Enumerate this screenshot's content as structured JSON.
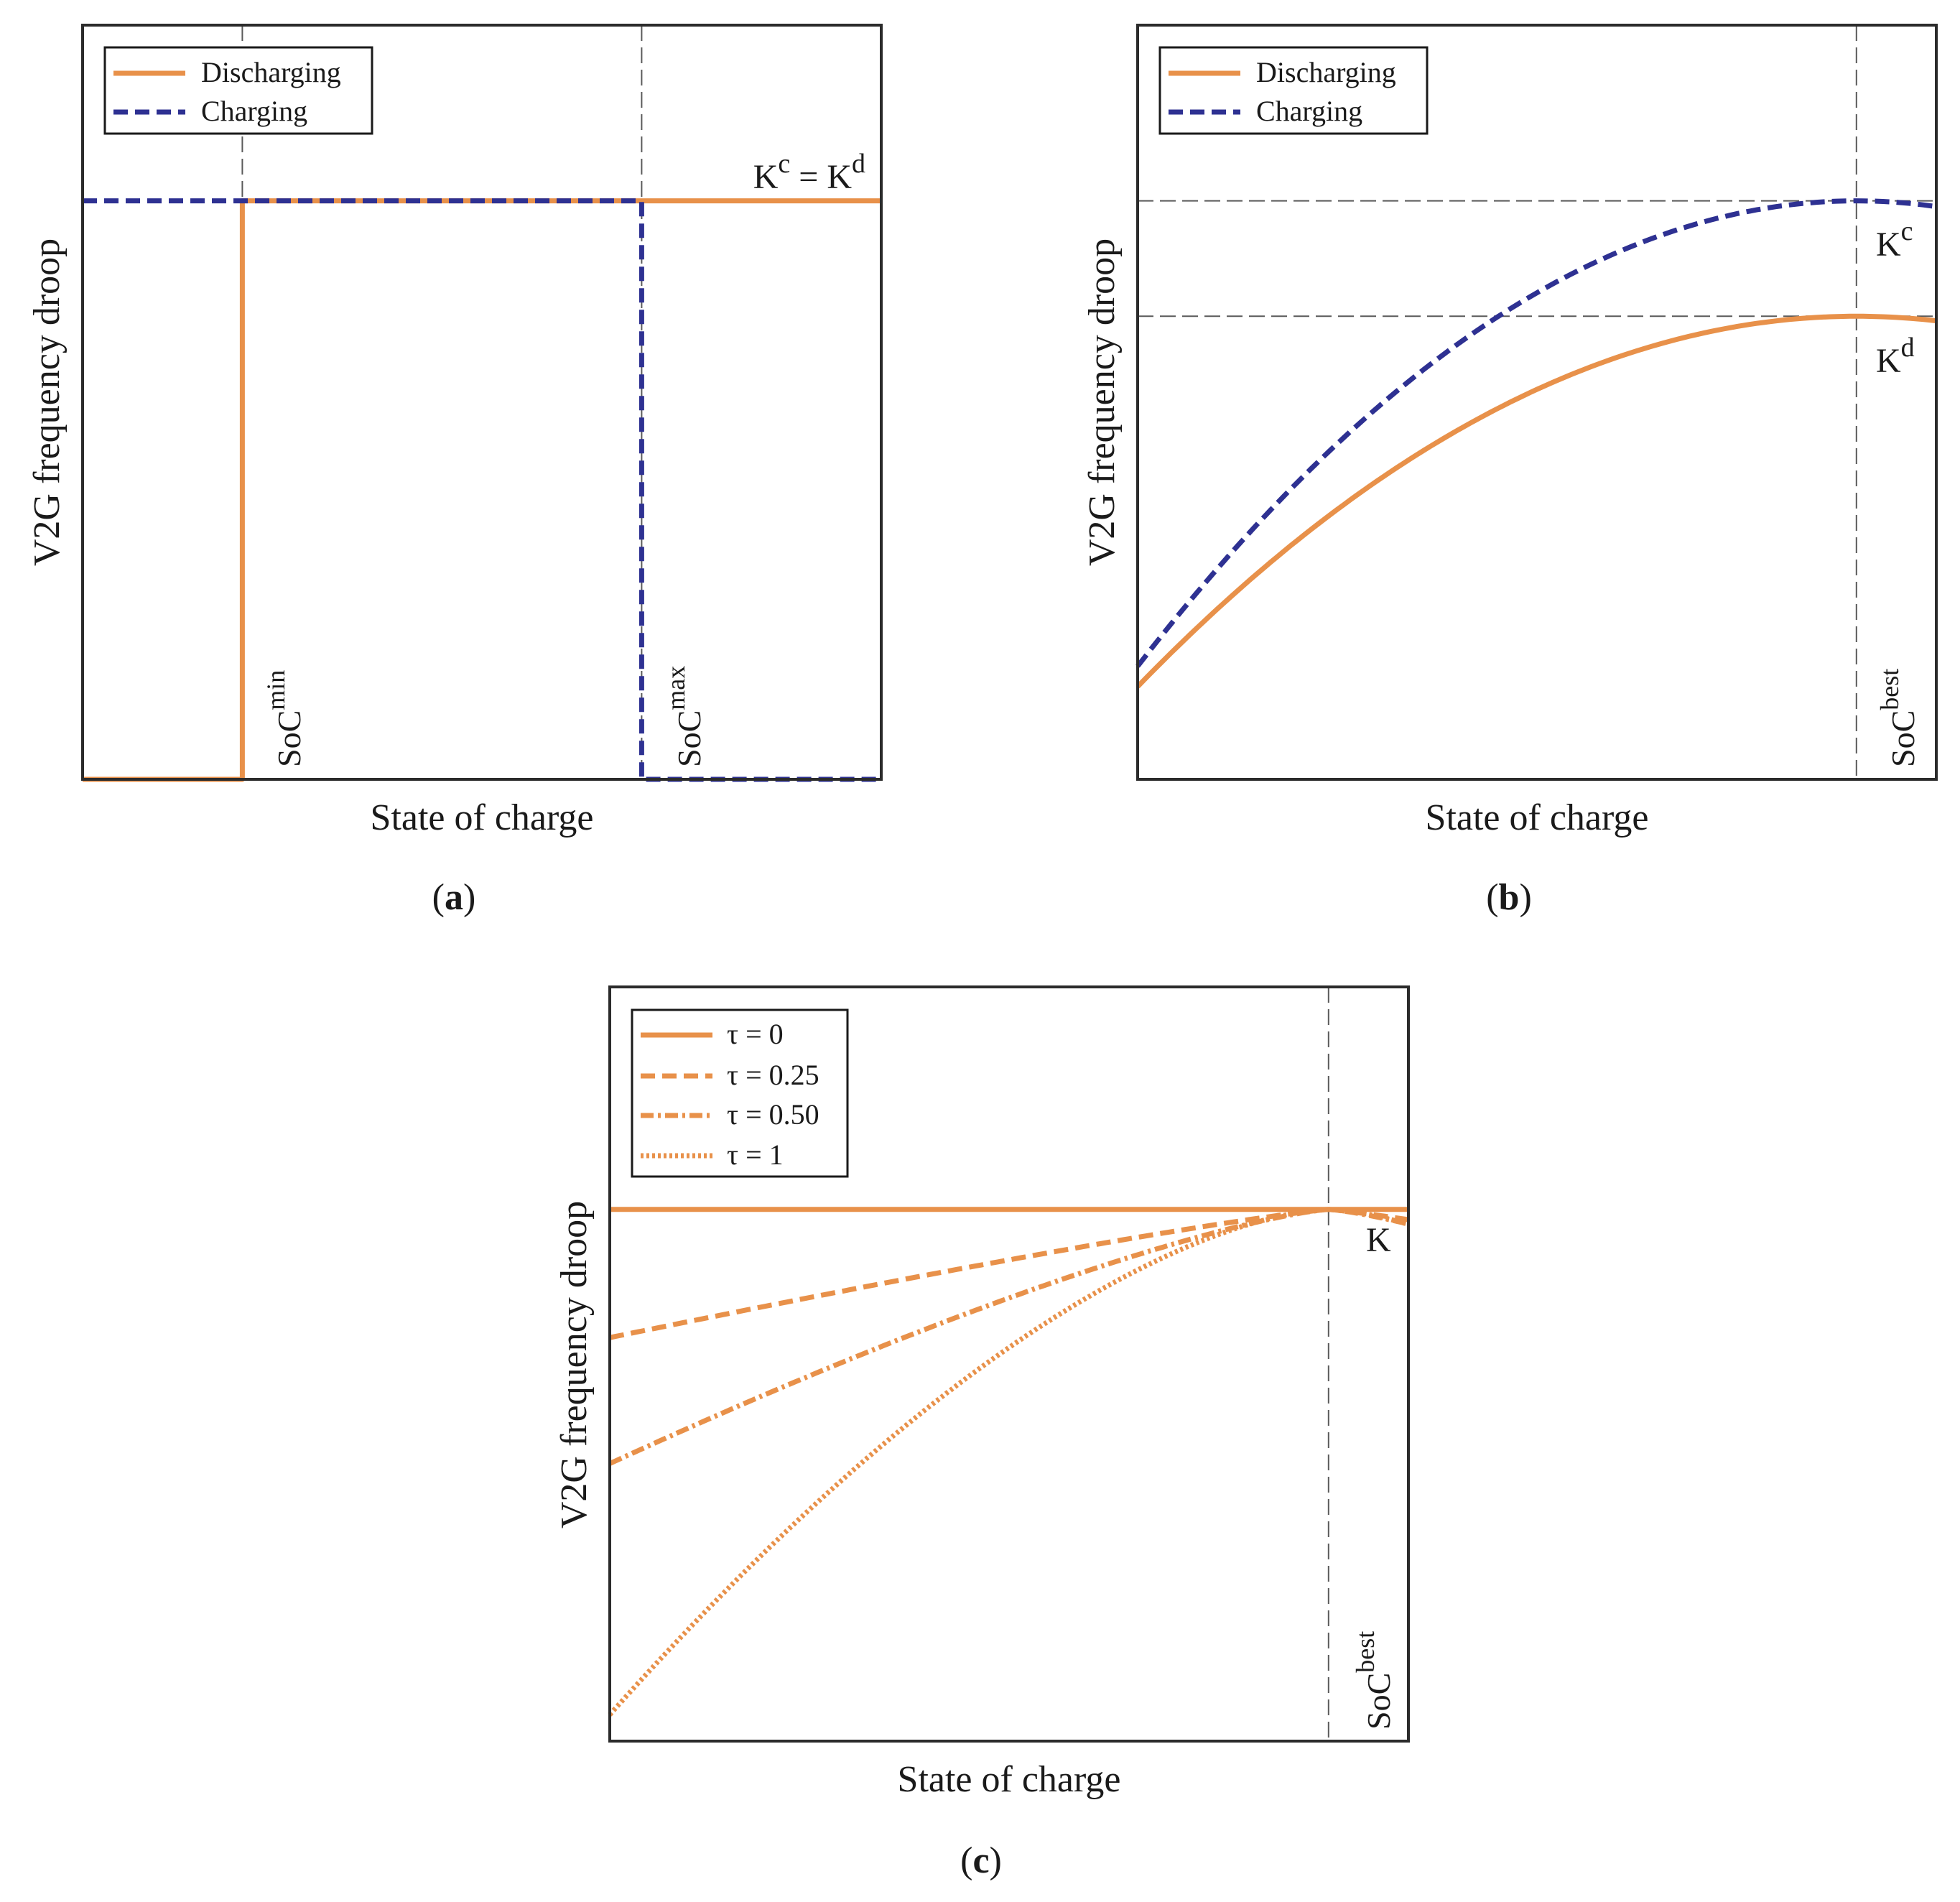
{
  "colors": {
    "discharging": "#E8914A",
    "charging": "#2E3192",
    "frame": "#2b2b2b",
    "guide": "#5a5a5a"
  },
  "panel_labels": {
    "a": "a",
    "b": "b",
    "c": "c"
  },
  "chart_data": [
    {
      "id": "a",
      "type": "line",
      "xlabel": "State of charge",
      "ylabel": "V2G frequency droop",
      "xlim": [
        0,
        1
      ],
      "ylim": [
        0,
        1
      ],
      "legend": {
        "placement": "top-left",
        "entries": [
          "Discharging",
          "Charging"
        ]
      },
      "series": [
        {
          "name": "Discharging",
          "style": "solid",
          "x": [
            0,
            0.2,
            0.2,
            1
          ],
          "y": [
            0,
            0,
            0.767,
            0.767
          ]
        },
        {
          "name": "Charging",
          "style": "dashed",
          "x": [
            0,
            0.7,
            0.7,
            1
          ],
          "y": [
            0.767,
            0.767,
            0,
            0
          ]
        }
      ],
      "vlines": [
        0.2,
        0.7
      ],
      "annotations": [
        {
          "base": "SoC",
          "sup": "min",
          "x": 0.2
        },
        {
          "base": "SoC",
          "sup": "max",
          "x": 0.7
        },
        {
          "kind": "equal",
          "left_base": "K",
          "left_sup": "c",
          "eq": " = ",
          "right_base": "K",
          "right_sup": "d"
        }
      ]
    },
    {
      "id": "b",
      "type": "line",
      "xlabel": "State of charge",
      "ylabel": "V2G frequency droop",
      "xlim": [
        0,
        1
      ],
      "ylim": [
        0,
        1
      ],
      "legend": {
        "placement": "top-left",
        "entries": [
          "Discharging",
          "Charging"
        ]
      },
      "series": [
        {
          "name": "Discharging",
          "style": "solid",
          "x0": 0.9,
          "y0": 0.123,
          "ypeak": 0.614,
          "x": [
            0,
            1
          ]
        },
        {
          "name": "Charging",
          "style": "dashed",
          "x0": 0.9,
          "y0": 0.15,
          "ypeak": 0.767,
          "x": [
            0,
            1
          ]
        }
      ],
      "vlines": [
        0.9
      ],
      "hlines": [
        0.767,
        0.614
      ],
      "annotations": [
        {
          "base": "K",
          "sup": "c"
        },
        {
          "base": "K",
          "sup": "d"
        },
        {
          "base": "SoC",
          "sup": "best",
          "x": 0.9
        }
      ]
    },
    {
      "id": "c",
      "type": "line",
      "xlabel": "State of charge",
      "ylabel": "V2G frequency droop",
      "xlim": [
        0,
        1
      ],
      "ylim": [
        0,
        1
      ],
      "legend": {
        "placement": "top-left",
        "entries": [
          "τ = 0",
          "τ = 0.25",
          "τ = 0.50",
          "τ = 1"
        ]
      },
      "series": [
        {
          "name": "τ = 0",
          "tau": 0,
          "style": "solid",
          "x0": 0.9,
          "ypeak": 0.705,
          "y_at_0": 0.705
        },
        {
          "name": "τ = 0.25",
          "tau": 0.25,
          "style": "dashed",
          "x0": 0.9,
          "ypeak": 0.705,
          "y_at_0": 0.535
        },
        {
          "name": "τ = 0.50",
          "tau": 0.5,
          "style": "dashdot",
          "x0": 0.9,
          "ypeak": 0.705,
          "y_at_0": 0.368
        },
        {
          "name": "τ = 1",
          "tau": 1,
          "style": "dotted",
          "x0": 0.9,
          "ypeak": 0.705,
          "y_at_0": 0.035
        }
      ],
      "vlines": [
        0.9
      ],
      "hlines": [
        0.705
      ],
      "annotations": [
        {
          "base": "K"
        },
        {
          "base": "SoC",
          "sup": "best",
          "x": 0.9
        }
      ]
    }
  ]
}
